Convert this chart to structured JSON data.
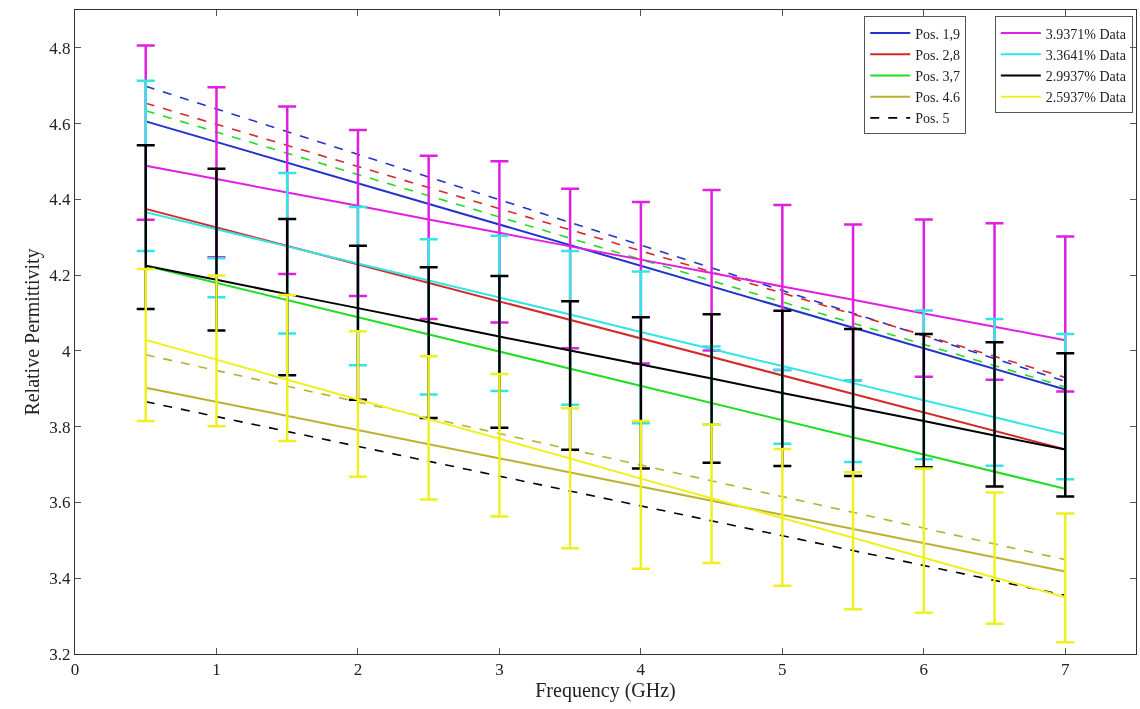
{
  "chart_data": {
    "type": "line",
    "xlabel": "Frequency (GHz)",
    "ylabel": "Relative Permittivity",
    "xlim": [
      0,
      7.5
    ],
    "xticks": [
      0,
      1,
      2,
      3,
      4,
      5,
      6,
      7
    ],
    "ylim": [
      3.2,
      4.9
    ],
    "yticks": [
      3.2,
      3.4,
      3.6,
      3.8,
      4,
      4.2,
      4.4,
      4.6,
      4.8
    ],
    "legend": "top right",
    "marker": "none",
    "series": [
      {
        "name": "Pos. 1,9",
        "color": "#2233cc",
        "x": [
          0.5,
          7
        ],
        "values": [
          4.606,
          3.898
        ],
        "line_style": "solid"
      },
      {
        "color": "#2233cc",
        "x": [
          0.5,
          7
        ],
        "values": [
          4.699,
          3.92
        ],
        "line_style": "dashed"
      },
      {
        "name": "Pos. 2,8",
        "color": "#d42a2a",
        "x": [
          0.5,
          7
        ],
        "values": [
          4.375,
          3.74
        ],
        "line_style": "solid"
      },
      {
        "color": "#d42a2a",
        "x": [
          0.5,
          7
        ],
        "values": [
          4.654,
          3.93
        ],
        "line_style": "dashed"
      },
      {
        "name": "Pos. 3,7",
        "color": "#22dd22",
        "x": [
          0.5,
          7
        ],
        "values": [
          4.225,
          3.636
        ],
        "line_style": "solid"
      },
      {
        "color": "#22dd22",
        "x": [
          0.5,
          7
        ],
        "values": [
          4.634,
          3.905
        ],
        "line_style": "dashed"
      },
      {
        "name": "Pos. 4.6",
        "color": "#b8b030",
        "x": [
          0.5,
          7
        ],
        "values": [
          3.903,
          3.418
        ],
        "line_style": "solid"
      },
      {
        "color": "#b8b030",
        "x": [
          0.5,
          7
        ],
        "values": [
          3.99,
          3.449
        ],
        "line_style": "dashed"
      },
      {
        "name": "Pos. 5",
        "color": "#000000",
        "x": [
          0.5,
          7
        ],
        "values": [
          3.866,
          3.355
        ],
        "line_style": "dashed"
      },
      {
        "name": "3.9371% Data",
        "color": "#e020e0",
        "line_style": "solid",
        "x": [
          0.5,
          1,
          1.5,
          2,
          2.5,
          3,
          3.5,
          4,
          4.5,
          5,
          5.5,
          6,
          6.5,
          7
        ],
        "values": [
          4.489,
          4.454,
          4.418,
          4.383,
          4.347,
          4.312,
          4.276,
          4.241,
          4.206,
          4.17,
          4.135,
          4.099,
          4.064,
          4.028
        ],
        "errors": [
          [
            4.346,
            4.806
          ],
          [
            4.247,
            4.696
          ],
          [
            4.203,
            4.645
          ],
          [
            4.145,
            4.583
          ],
          [
            4.084,
            4.515
          ],
          [
            4.075,
            4.501
          ],
          [
            4.007,
            4.428
          ],
          [
            3.967,
            4.393
          ],
          [
            4.001,
            4.425
          ],
          [
            3.95,
            4.385
          ],
          [
            3.922,
            4.334
          ],
          [
            3.932,
            4.347
          ],
          [
            3.924,
            4.337
          ],
          [
            3.893,
            4.302
          ]
        ]
      },
      {
        "name": "3.3641% Data",
        "color": "#33e5e5",
        "line_style": "solid",
        "x": [
          0.5,
          1,
          1.5,
          2,
          2.5,
          3,
          3.5,
          4,
          4.5,
          5,
          5.5,
          6,
          6.5,
          7
        ],
        "values": [
          4.366,
          4.321,
          4.276,
          4.231,
          4.186,
          4.141,
          4.096,
          4.05,
          4.005,
          3.96,
          3.915,
          3.87,
          3.825,
          3.78
        ],
        "errors": [
          [
            4.264,
            4.713
          ],
          [
            4.142,
            4.245
          ],
          [
            4.046,
            4.47
          ],
          [
            3.962,
            4.38
          ],
          [
            3.885,
            4.295
          ],
          [
            3.894,
            4.304
          ],
          [
            3.858,
            4.264
          ],
          [
            3.809,
            4.21
          ],
          [
            3.806,
            4.012
          ],
          [
            3.755,
            3.95
          ],
          [
            3.707,
            3.922
          ],
          [
            3.714,
            4.107
          ],
          [
            3.697,
            4.084
          ],
          [
            3.661,
            4.045
          ]
        ]
      },
      {
        "name": "2.9937% Data",
        "color": "#000000",
        "line_style": "solid",
        "x": [
          0.5,
          1,
          1.5,
          2,
          2.5,
          3,
          3.5,
          4,
          4.5,
          5,
          5.5,
          6,
          6.5,
          7
        ],
        "values": [
          4.225,
          4.188,
          4.15,
          4.113,
          4.076,
          4.038,
          4.001,
          3.964,
          3.927,
          3.889,
          3.852,
          3.815,
          3.777,
          3.74
        ],
        "errors": [
          [
            4.111,
            4.543
          ],
          [
            4.054,
            4.481
          ],
          [
            3.936,
            4.348
          ],
          [
            3.871,
            4.278
          ],
          [
            3.823,
            4.221
          ],
          [
            3.797,
            4.198
          ],
          [
            3.739,
            4.131
          ],
          [
            3.69,
            4.089
          ],
          [
            3.705,
            4.097
          ],
          [
            3.696,
            4.106
          ],
          [
            3.67,
            4.058
          ],
          [
            3.693,
            4.045
          ],
          [
            3.642,
            4.023
          ],
          [
            3.616,
            3.994
          ]
        ]
      },
      {
        "name": "2.5937% Data",
        "color": "#f0f020",
        "line_style": "solid",
        "x": [
          0.5,
          1,
          1.5,
          2,
          2.5,
          3,
          3.5,
          4,
          4.5,
          5,
          5.5,
          6,
          6.5,
          7
        ],
        "values": [
          4.029,
          3.977,
          3.924,
          3.872,
          3.82,
          3.768,
          3.716,
          3.663,
          3.611,
          3.559,
          3.507,
          3.454,
          3.402,
          3.35
        ],
        "errors": [
          [
            3.815,
            4.216
          ],
          [
            3.801,
            4.199
          ],
          [
            3.762,
            4.148
          ],
          [
            3.668,
            4.052
          ],
          [
            3.608,
            3.986
          ],
          [
            3.563,
            3.939
          ],
          [
            3.479,
            3.849
          ],
          [
            3.425,
            3.815
          ],
          [
            3.44,
            3.806
          ],
          [
            3.38,
            3.741
          ],
          [
            3.318,
            3.68
          ],
          [
            3.309,
            3.69
          ],
          [
            3.28,
            3.626
          ],
          [
            3.231,
            3.571
          ]
        ]
      }
    ]
  }
}
